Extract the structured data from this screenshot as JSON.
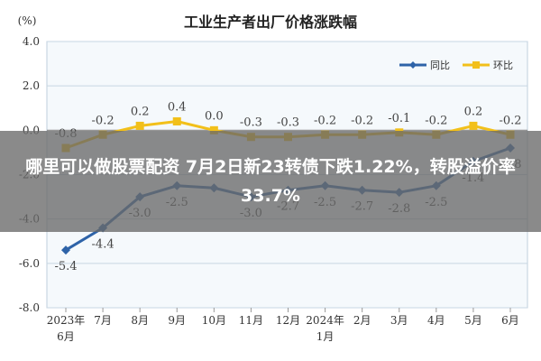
{
  "chart_data": {
    "type": "line",
    "title": "工业生产者出厂价格涨跌幅",
    "ylabel": "(%)",
    "ylim": [
      -8.0,
      4.0
    ],
    "yticks": [
      "4.0",
      "2.0",
      "0.0",
      "-2.0",
      "-4.0",
      "-6.0",
      "-8.0"
    ],
    "categories": [
      {
        "line1": "2023年",
        "line2": "6月"
      },
      {
        "line1": "7月",
        "line2": ""
      },
      {
        "line1": "8月",
        "line2": ""
      },
      {
        "line1": "9月",
        "line2": ""
      },
      {
        "line1": "10月",
        "line2": ""
      },
      {
        "line1": "11月",
        "line2": ""
      },
      {
        "line1": "12月",
        "line2": ""
      },
      {
        "line1": "2024年",
        "line2": "1月"
      },
      {
        "line1": "2月",
        "line2": ""
      },
      {
        "line1": "3月",
        "line2": ""
      },
      {
        "line1": "4月",
        "line2": ""
      },
      {
        "line1": "5月",
        "line2": ""
      },
      {
        "line1": "6月",
        "line2": ""
      }
    ],
    "series": [
      {
        "name": "同比",
        "color": "#2e63a8",
        "values": [
          -5.4,
          -4.4,
          -3.0,
          -2.5,
          -2.6,
          -3.0,
          -2.7,
          -2.5,
          -2.7,
          -2.8,
          -2.5,
          -1.4,
          -0.8
        ],
        "labels": [
          "-5.4",
          "-4.4",
          "-3.0",
          "-2.5",
          "",
          "-3.0",
          "-2.7",
          "-2.5",
          "-2.7",
          "-2.8",
          "-2.5",
          "-1.4",
          "-0.8"
        ]
      },
      {
        "name": "环比",
        "color": "#f2c01a",
        "values": [
          -0.8,
          -0.2,
          0.2,
          0.4,
          0.0,
          -0.3,
          -0.3,
          -0.2,
          -0.2,
          -0.1,
          -0.2,
          0.2,
          -0.2
        ],
        "labels": [
          "-0.8",
          "-0.2",
          "0.2",
          "0.4",
          "0.0",
          "-0.3",
          "-0.3",
          "-0.2",
          "-0.2",
          "-0.1",
          "-0.2",
          "0.2",
          "-0.2"
        ]
      }
    ],
    "legend": "top-right",
    "grid": true
  },
  "overlay": {
    "headline": "哪里可以做股票配资 7月2日新23转债下跌1.22%，转股溢价率33.7%"
  }
}
